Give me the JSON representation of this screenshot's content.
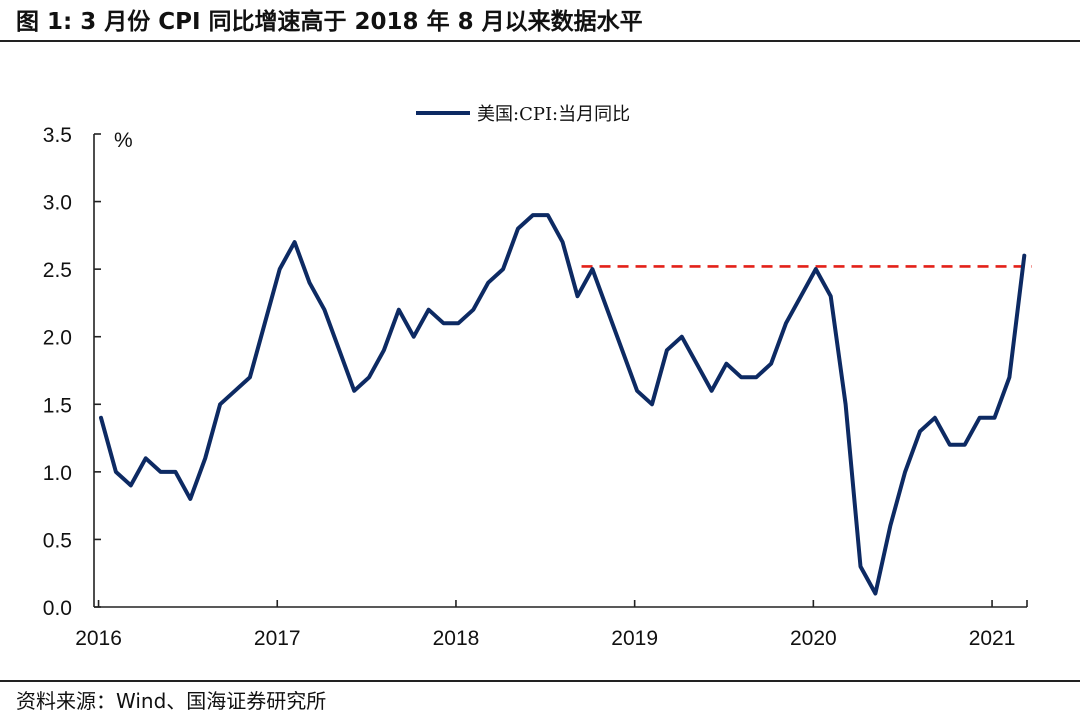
{
  "figure": {
    "title": "图 1:  3 月份 CPI 同比增速高于 2018 年 8 月以来数据水平",
    "source": "资料来源：Wind、国海证券研究所"
  },
  "chart_data": {
    "type": "line",
    "ylabel": "%",
    "ylim": [
      0,
      3.5
    ],
    "y_ticks": [
      0.0,
      0.5,
      1.0,
      1.5,
      2.0,
      2.5,
      3.0,
      3.5
    ],
    "y_tick_labels": [
      "0.0",
      "0.5",
      "1.0",
      "1.5",
      "2.0",
      "2.5",
      "3.0",
      "3.5"
    ],
    "x_tick_labels": [
      "2016",
      "2017",
      "2018",
      "2019",
      "2020",
      "2021"
    ],
    "x": [
      "2016-01",
      "2016-02",
      "2016-03",
      "2016-04",
      "2016-05",
      "2016-06",
      "2016-07",
      "2016-08",
      "2016-09",
      "2016-10",
      "2016-11",
      "2016-12",
      "2017-01",
      "2017-02",
      "2017-03",
      "2017-04",
      "2017-05",
      "2017-06",
      "2017-07",
      "2017-08",
      "2017-09",
      "2017-10",
      "2017-11",
      "2017-12",
      "2018-01",
      "2018-02",
      "2018-03",
      "2018-04",
      "2018-05",
      "2018-06",
      "2018-07",
      "2018-08",
      "2018-09",
      "2018-10",
      "2018-11",
      "2018-12",
      "2019-01",
      "2019-02",
      "2019-03",
      "2019-04",
      "2019-05",
      "2019-06",
      "2019-07",
      "2019-08",
      "2019-09",
      "2019-10",
      "2019-11",
      "2019-12",
      "2020-01",
      "2020-02",
      "2020-03",
      "2020-04",
      "2020-05",
      "2020-06",
      "2020-07",
      "2020-08",
      "2020-09",
      "2020-10",
      "2020-11",
      "2020-12",
      "2021-01",
      "2021-02",
      "2021-03"
    ],
    "series": [
      {
        "name": "美国:CPI:当月同比",
        "color": "#0d2a63",
        "values": [
          1.4,
          1.0,
          0.9,
          1.1,
          1.0,
          1.0,
          0.8,
          1.1,
          1.5,
          1.6,
          1.7,
          2.1,
          2.5,
          2.7,
          2.4,
          2.2,
          1.9,
          1.6,
          1.7,
          1.9,
          2.2,
          2.0,
          2.2,
          2.1,
          2.1,
          2.2,
          2.4,
          2.5,
          2.8,
          2.9,
          2.9,
          2.7,
          2.3,
          2.5,
          2.2,
          1.9,
          1.6,
          1.5,
          1.9,
          2.0,
          1.8,
          1.6,
          1.8,
          1.7,
          1.7,
          1.8,
          2.1,
          2.3,
          2.5,
          2.3,
          1.5,
          0.3,
          0.1,
          0.6,
          1.0,
          1.3,
          1.4,
          1.2,
          1.2,
          1.4,
          1.4,
          1.7,
          2.6
        ]
      }
    ],
    "reference_line": {
      "y": 2.52,
      "from": "2018-09",
      "to": "2021-03",
      "color": "#e32119",
      "style": "dashed"
    },
    "grid": false,
    "legend_position": "top-center"
  }
}
